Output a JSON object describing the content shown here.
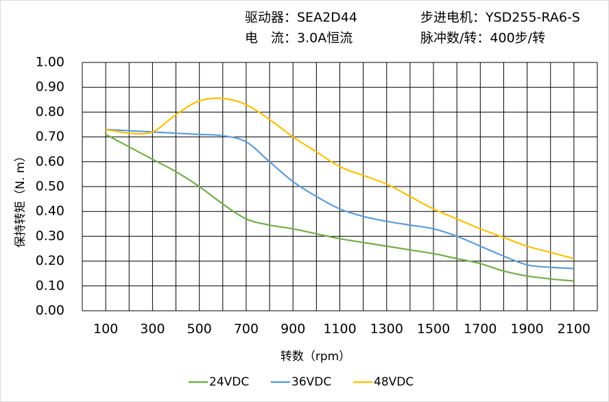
{
  "chart_data": {
    "type": "line",
    "info": [
      [
        "驱动器：SEA2D44",
        "步进电机：YSD255-RA6-S"
      ],
      [
        "电　流：3.0A恒流",
        "脉冲数/转：400步/转"
      ]
    ],
    "y_label": "保持转矩（N. m）",
    "x_label": "转数（rpm）",
    "x": [
      100,
      200,
      300,
      400,
      500,
      600,
      700,
      800,
      900,
      1000,
      1100,
      1200,
      1300,
      1400,
      1500,
      1600,
      1700,
      1800,
      1900,
      2000,
      2100
    ],
    "series": [
      {
        "name": "24VDC",
        "color": "#70ad47",
        "values": [
          0.71,
          0.66,
          0.61,
          0.56,
          0.5,
          0.43,
          0.37,
          0.345,
          0.33,
          0.31,
          0.29,
          0.275,
          0.26,
          0.245,
          0.23,
          0.21,
          0.19,
          0.16,
          0.14,
          0.128,
          0.12
        ]
      },
      {
        "name": "36VDC",
        "color": "#5b9bd5",
        "values": [
          0.73,
          0.725,
          0.72,
          0.715,
          0.71,
          0.705,
          0.68,
          0.6,
          0.52,
          0.46,
          0.41,
          0.38,
          0.36,
          0.345,
          0.33,
          0.3,
          0.26,
          0.22,
          0.185,
          0.175,
          0.17
        ]
      },
      {
        "name": "48VDC",
        "color": "#ffc000",
        "values": [
          0.73,
          0.715,
          0.72,
          0.79,
          0.845,
          0.855,
          0.83,
          0.77,
          0.7,
          0.64,
          0.58,
          0.545,
          0.51,
          0.46,
          0.41,
          0.37,
          0.33,
          0.295,
          0.26,
          0.235,
          0.21
        ]
      }
    ],
    "xlim": [
      0,
      2200
    ],
    "xticks": [
      100,
      300,
      500,
      700,
      900,
      1100,
      1300,
      1500,
      1700,
      1900,
      2100
    ],
    "xgrid": [
      0,
      200,
      400,
      600,
      800,
      1000,
      1200,
      1400,
      1600,
      1800,
      2000,
      2200
    ],
    "ylim": [
      0,
      1
    ],
    "yticks": [
      {
        "value": 0,
        "label": "0.00"
      },
      {
        "value": 0.1,
        "label": "0.10"
      },
      {
        "value": 0.2,
        "label": "0.20"
      },
      {
        "value": 0.3,
        "label": "0.30"
      },
      {
        "value": 0.4,
        "label": "0.40"
      },
      {
        "value": 0.5,
        "label": "0.50"
      },
      {
        "value": 0.6,
        "label": "0.60"
      },
      {
        "value": 0.7,
        "label": "0.70"
      },
      {
        "value": 0.8,
        "label": "0.80"
      },
      {
        "value": 0.9,
        "label": "0.90"
      },
      {
        "value": 1,
        "label": "1.00"
      }
    ],
    "grid": true
  }
}
